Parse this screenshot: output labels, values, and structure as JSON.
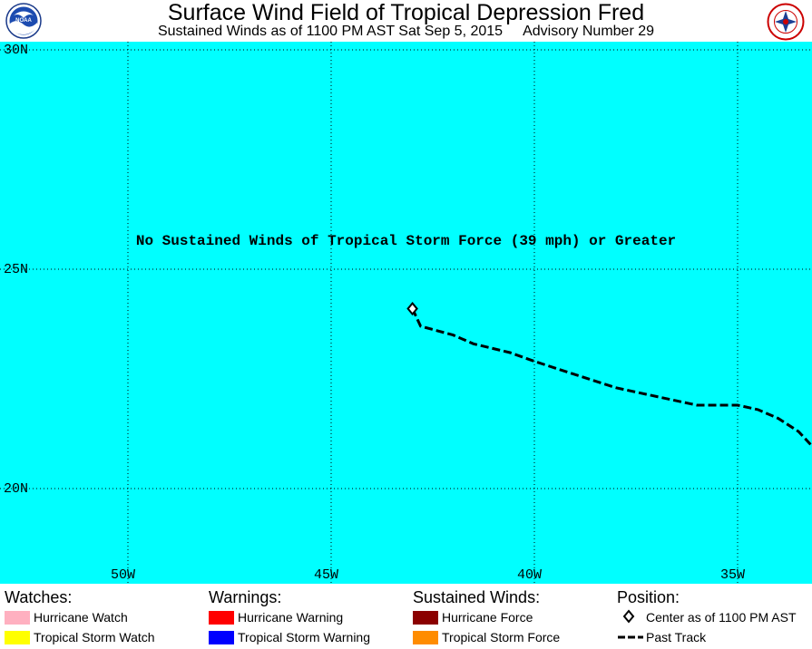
{
  "header": {
    "title": "Surface Wind Field of Tropical Depression Fred",
    "subtitle_time": "Sustained Winds as of 1100 PM AST Sat Sep 5, 2015",
    "subtitle_advisory": "Advisory Number 29",
    "logo_left_icon": "noaa-logo-icon",
    "logo_right_icon": "nws-logo-icon"
  },
  "map": {
    "background_color": "#00ffff",
    "notice": "No Sustained Winds of Tropical Storm Force (39 mph) or Greater",
    "lat_labels": [
      "30N",
      "25N",
      "20N"
    ],
    "lon_labels": [
      "50W",
      "45W",
      "40W",
      "35W"
    ],
    "storm_center": {
      "lat": 24.1,
      "lon": 43.0
    },
    "past_track": [
      {
        "lat": 24.1,
        "lon": 43.0
      },
      {
        "lat": 23.9,
        "lon": 42.9
      },
      {
        "lat": 23.7,
        "lon": 42.8
      },
      {
        "lat": 23.5,
        "lon": 42.0
      },
      {
        "lat": 23.3,
        "lon": 41.5
      },
      {
        "lat": 23.1,
        "lon": 40.6
      },
      {
        "lat": 22.9,
        "lon": 40.0
      },
      {
        "lat": 22.6,
        "lon": 39.0
      },
      {
        "lat": 22.3,
        "lon": 38.0
      },
      {
        "lat": 22.1,
        "lon": 37.0
      },
      {
        "lat": 22.0,
        "lon": 36.5
      },
      {
        "lat": 21.9,
        "lon": 36.0
      },
      {
        "lat": 21.9,
        "lon": 35.0
      },
      {
        "lat": 21.8,
        "lon": 34.5
      },
      {
        "lat": 21.6,
        "lon": 34.0
      },
      {
        "lat": 21.3,
        "lon": 33.5
      },
      {
        "lat": 20.8,
        "lon": 33.0
      }
    ]
  },
  "legend": {
    "watches": {
      "heading": "Watches:",
      "items": [
        {
          "label": "Hurricane Watch",
          "color": "#ffb0c0"
        },
        {
          "label": "Tropical Storm Watch",
          "color": "#ffff00"
        }
      ]
    },
    "warnings": {
      "heading": "Warnings:",
      "items": [
        {
          "label": "Hurricane Warning",
          "color": "#ff0000"
        },
        {
          "label": "Tropical Storm Warning",
          "color": "#0000ff"
        }
      ]
    },
    "winds": {
      "heading": "Sustained Winds:",
      "items": [
        {
          "label": "Hurricane Force",
          "color": "#8b0000"
        },
        {
          "label": "Tropical Storm Force",
          "color": "#ff8c00"
        }
      ]
    },
    "position": {
      "heading": "Position:",
      "center_label": "Center as of 1100 PM AST",
      "track_label": "Past Track",
      "center_icon": "diamond-center-icon",
      "track_icon": "dashed-track-icon"
    }
  }
}
